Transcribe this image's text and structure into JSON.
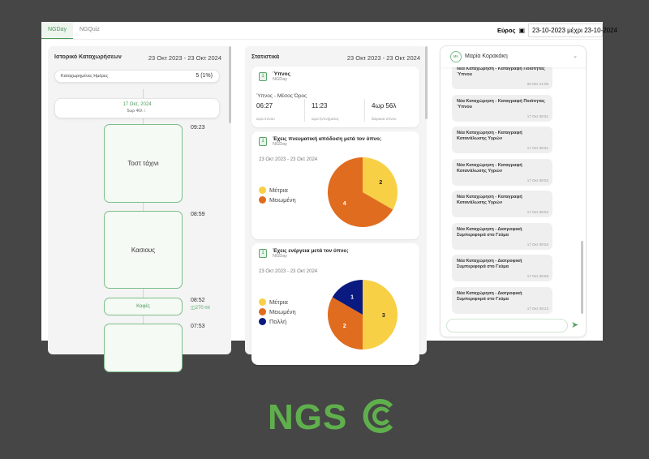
{
  "tabs": [
    "NGDay",
    "NGQuiz"
  ],
  "range": {
    "label": "Εύρος",
    "value": "23-10-2023 μέχρι 23-10-2024"
  },
  "history": {
    "title": "Ιστορικό Καταχωρήσεων",
    "date": "23 Οκτ 2023 - 23 Οκτ 2024",
    "days_label": "Καταχωρημένες Ημέρες",
    "days_value": "5 (1%)",
    "day": "17 Οκτ, 2024",
    "day_sub": "5ωρ 40λ",
    "events": [
      {
        "label": "Τοστ τάχινι",
        "time": "09:23"
      },
      {
        "label": "Κασιους",
        "time": "08:59"
      },
      {
        "label": "Καφές",
        "time": "08:52",
        "extra": "270 ml"
      },
      {
        "label": "",
        "time": "07:53"
      }
    ]
  },
  "stats": {
    "title": "Στατιστικά",
    "date": "23 Οκτ 2023 - 23 Οκτ 2024",
    "sleep": {
      "title": "Ύπνος",
      "source": "NGDay",
      "subtitle": "Ύπνος - Μέσος Όρος",
      "values": [
        {
          "v": "06:27",
          "l": "ώρα ύπνου"
        },
        {
          "v": "11:23",
          "l": "ώρα ξυπνήματος"
        },
        {
          "v": "4ωρ 56λ",
          "l": "διάρκεια ύπνου"
        }
      ]
    }
  },
  "chart_data": [
    {
      "type": "pie",
      "title": "Έχεις πνευματική απόδοση μετά τον ύπνο;",
      "source": "NGDay",
      "date": "23 Οκτ 2023 - 23 Οκτ 2024",
      "categories": [
        "Μέτρια",
        "Μειωμένη"
      ],
      "values": [
        2,
        4
      ],
      "colors": [
        "#f7d046",
        "#e06c1f"
      ]
    },
    {
      "type": "pie",
      "title": "Έχεις ενέργεια μετά τον ύπνο;",
      "source": "NGDay",
      "date": "23 Οκτ 2023 - 23 Οκτ 2024",
      "categories": [
        "Μέτρια",
        "Μειωμένη",
        "Πολλή"
      ],
      "values": [
        3,
        2,
        1
      ],
      "colors": [
        "#f7d046",
        "#e06c1f",
        "#0a1a80"
      ]
    }
  ],
  "chat": {
    "initials": "ΜΚ",
    "user": "Μαρία Κορακάκη",
    "messages": [
      {
        "t": "Νέα Καταχώρηση - Καταγραφή Ποιότητας Ύπνου",
        "d": "06 Οκτ 21:05"
      },
      {
        "t": "Νέα Καταχώρηση - Καταγραφή Ποιότητας Ύπνου",
        "d": "17 Οκτ 08:51"
      },
      {
        "t": "Νέα Καταχώρηση - Καταγραφή Κατανάλωσης Υγρών",
        "d": "17 Οκτ 08:51"
      },
      {
        "t": "Νέα Καταχώρηση - Καταγραφή Κατανάλωσης Υγρών",
        "d": "17 Οκτ 08:52"
      },
      {
        "t": "Νέα Καταχώρηση - Καταγραφή Κατανάλωσης Υγρών",
        "d": "17 Οκτ 08:52"
      },
      {
        "t": "Νέα Καταχώρηση - Διατροφική Συμπεριφορά στο Γεύμα",
        "d": "17 Οκτ 08:53"
      },
      {
        "t": "Νέα Καταχώρηση - Διατροφική Συμπεριφορά στο Γεύμα",
        "d": "17 Οκτ 08:59"
      },
      {
        "t": "Νέα Καταχώρηση - Διατροφική Συμπεριφορά στο Γεύμα",
        "d": "17 Οκτ 09:23"
      }
    ]
  },
  "logo": "NGS"
}
